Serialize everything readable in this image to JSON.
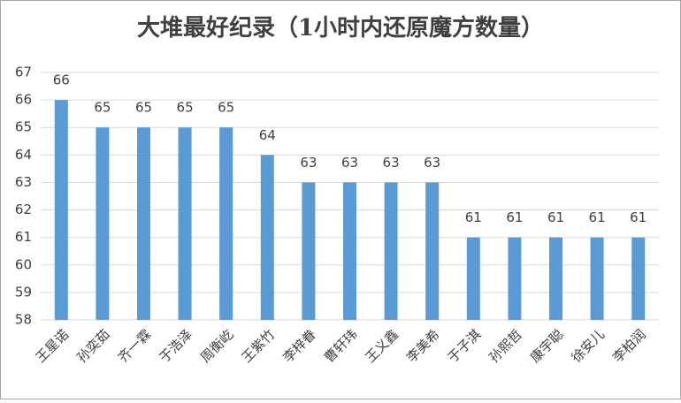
{
  "chart_data": {
    "type": "bar",
    "title": "大堆最好纪录（1小时内还原魔方数量）",
    "categories": [
      "王星诺",
      "孙奕茹",
      "齐一霖",
      "于浩泽",
      "周衡屹",
      "王紫竹",
      "李梓眷",
      "曹轩玮",
      "王义鑫",
      "李美希",
      "于子淇",
      "孙熙哲",
      "康宇聪",
      "徐安儿",
      "李柏润"
    ],
    "values": [
      66,
      65,
      65,
      65,
      65,
      64,
      63,
      63,
      63,
      63,
      61,
      61,
      61,
      61,
      61
    ],
    "color": "#5b9bd5",
    "ylim": [
      58,
      67
    ],
    "yticks": [
      58,
      59,
      60,
      61,
      62,
      63,
      64,
      65,
      66,
      67
    ],
    "grid": true
  }
}
